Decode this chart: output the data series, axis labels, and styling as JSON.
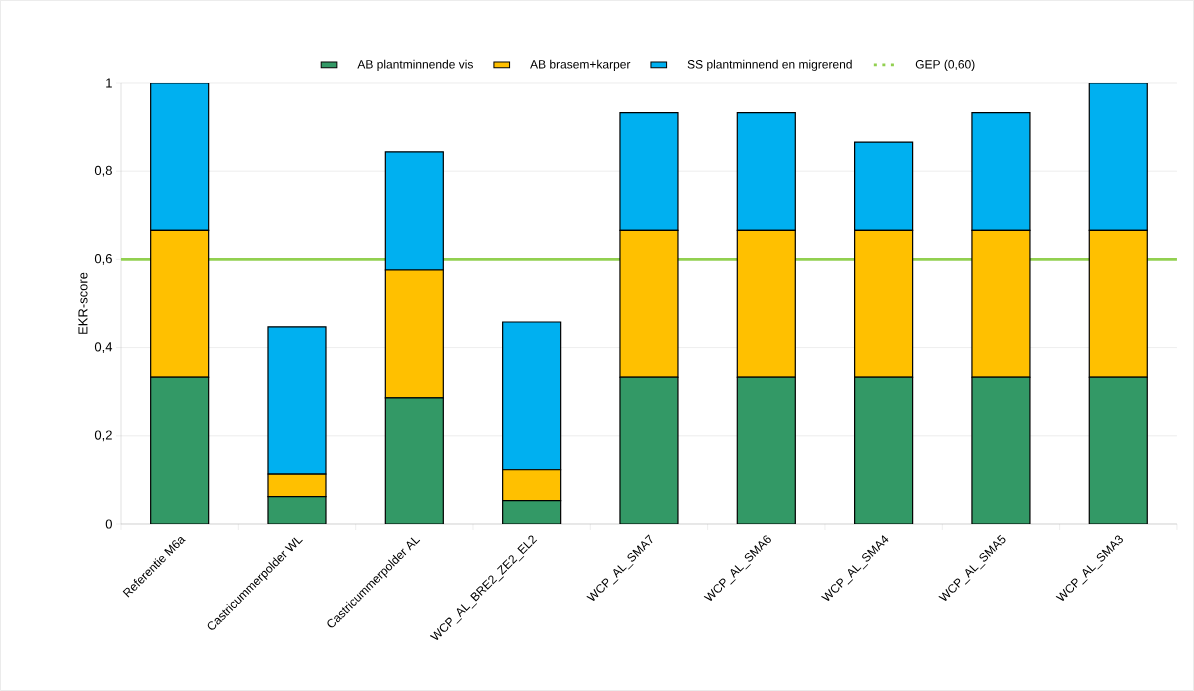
{
  "chart_data": {
    "type": "bar",
    "stacked": true,
    "ylabel": "EKR-score",
    "categories": [
      "Referentie M6a",
      "Castricummerpolder WL",
      "Castricummerpolder AL",
      "WCP_AL_BRE2_ZE2_EL2",
      "WCP_AL_SMA7",
      "WCP_AL_SMA6",
      "WCP_AL_SMA4",
      "WCP_AL_SMA5",
      "WCP_AL_SMA3"
    ],
    "series": [
      {
        "name": "AB plantminnende vis",
        "color": "#339966",
        "values": [
          0.333,
          0.062,
          0.286,
          0.053,
          0.333,
          0.333,
          0.333,
          0.333,
          0.333
        ]
      },
      {
        "name": "AB brasem+karper",
        "color": "#ffc000",
        "values": [
          0.333,
          0.051,
          0.29,
          0.07,
          0.333,
          0.333,
          0.333,
          0.333,
          0.333
        ]
      },
      {
        "name": "SS plantminnend en migrerend",
        "color": "#00b0f0",
        "values": [
          0.334,
          0.334,
          0.268,
          0.335,
          0.267,
          0.267,
          0.2,
          0.267,
          0.334
        ]
      }
    ],
    "ref_lines": [
      {
        "axis": "y",
        "value": 0.6,
        "label": "GEP (0,60)",
        "color": "#92d050"
      }
    ],
    "ylim": [
      0,
      1
    ],
    "yticks": [
      0,
      {
        "value": 0.2,
        "label": "0,2"
      },
      {
        "value": 0.4,
        "label": "0,4"
      },
      {
        "value": 0.6,
        "label": "0,6"
      },
      {
        "value": 0.8,
        "label": "0,8"
      },
      1
    ],
    "grid": "y",
    "legend": "top"
  }
}
